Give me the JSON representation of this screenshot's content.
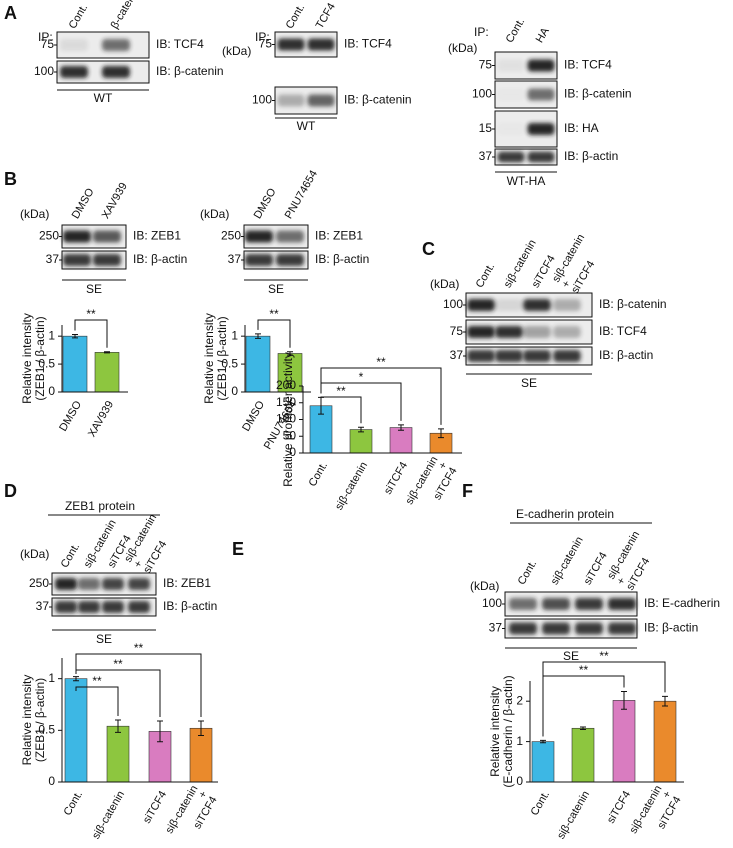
{
  "panel_labels": [
    "A",
    "B",
    "C",
    "D",
    "E",
    "F"
  ],
  "blots": [
    {
      "ip": "IP:",
      "lanes": [
        "Cont.",
        "β-catenin"
      ],
      "rows": [
        {
          "mw": "75",
          "ib": "IB: TCF4"
        },
        {
          "mw": "100",
          "ib": "IB: β-catenin"
        }
      ],
      "cell": "WT"
    },
    {
      "kda": "(kDa)",
      "ip": "IP:",
      "lanes": [
        "Cont.",
        "TCF4"
      ],
      "rows": [
        {
          "mw": "75",
          "ib": "IB: TCF4"
        },
        {
          "mw": "100",
          "ib": "IB: β-catenin"
        }
      ],
      "cell": "WT"
    },
    {
      "kda": "(kDa)",
      "ip": "IP:",
      "lanes": [
        "Cont.",
        "HA"
      ],
      "rows": [
        {
          "mw": "75",
          "ib": "IB: TCF4"
        },
        {
          "mw": "100",
          "ib": "IB: β-catenin"
        },
        {
          "mw": "15",
          "ib": "IB: HA"
        },
        {
          "mw": "37",
          "ib": "IB: β-actin"
        }
      ],
      "cell": "WT-HA"
    },
    {
      "kda": "(kDa)",
      "lanes": [
        "DMSO",
        "XAV939"
      ],
      "rows": [
        {
          "mw": "250",
          "ib": "IB: ZEB1"
        },
        {
          "mw": "37",
          "ib": "IB: β-actin"
        }
      ],
      "cell": "SE"
    },
    {
      "kda": "(kDa)",
      "lanes": [
        "DMSO",
        "PNU74654"
      ],
      "rows": [
        {
          "mw": "250",
          "ib": "IB: ZEB1"
        },
        {
          "mw": "37",
          "ib": "IB: β-actin"
        }
      ],
      "cell": "SE"
    },
    {
      "kda": "(kDa)",
      "lanes": [
        "Cont.",
        "siβ-catenin",
        "siTCF4",
        [
          "siβ-catenin",
          "+",
          "siTCF4"
        ]
      ],
      "rows": [
        {
          "mw": "100",
          "ib": "IB: β-catenin"
        },
        {
          "mw": "75",
          "ib": "IB: TCF4"
        },
        {
          "mw": "37",
          "ib": "IB: β-actin"
        }
      ],
      "cell": "SE"
    },
    {
      "header": "ZEB1 protein",
      "kda": "(kDa)",
      "lanes": [
        "Cont.",
        "siβ-catenin",
        "siTCF4",
        [
          "siβ-catenin",
          "+",
          "siTCF4"
        ]
      ],
      "rows": [
        {
          "mw": "250",
          "ib": "IB: ZEB1"
        },
        {
          "mw": "37",
          "ib": "IB: β-actin"
        }
      ],
      "cell": "SE"
    },
    {
      "header": "E-cadherin protein",
      "kda": "(kDa)",
      "lanes": [
        "Cont.",
        "siβ-catenin",
        "siTCF4",
        [
          "siβ-catenin",
          "+",
          "siTCF4"
        ]
      ],
      "rows": [
        {
          "mw": "100",
          "ib": "IB: E-cadherin"
        },
        {
          "mw": "37",
          "ib": "IB: β-actin"
        }
      ],
      "cell": "SE"
    }
  ],
  "chart_data": [
    {
      "type": "bar",
      "y_label": [
        "Relative intensity",
        "(ZEB1 / β-actin)"
      ],
      "categories": [
        "DMSO",
        "XAV939"
      ],
      "values": [
        1.0,
        0.71
      ],
      "errors": [
        0.03,
        0.01
      ],
      "colors": [
        "#3db7e4",
        "#8dc63f"
      ],
      "ylim": [
        0,
        1.2
      ],
      "yticks": [
        0,
        0.5,
        1
      ],
      "significance": [
        {
          "between": [
            0,
            1
          ],
          "label": "**"
        }
      ]
    },
    {
      "type": "bar",
      "y_label": [
        "Relative intensity",
        "(ZEB1 / β-actin)"
      ],
      "categories": [
        "DMSO",
        "PNU74654"
      ],
      "values": [
        1.0,
        0.69
      ],
      "errors": [
        0.04,
        0.03
      ],
      "colors": [
        "#3db7e4",
        "#8dc63f"
      ],
      "ylim": [
        0,
        1.2
      ],
      "yticks": [
        0,
        0.5,
        1
      ],
      "significance": [
        {
          "between": [
            0,
            1
          ],
          "label": "**"
        }
      ]
    },
    {
      "type": "bar",
      "y_label": [
        "Relative intensity",
        "(ZEB1 / β-actin)"
      ],
      "categories": [
        "Cont.",
        "siβ-catenin",
        "siTCF4",
        [
          "siβ-catenin",
          "+",
          "siTCF4"
        ]
      ],
      "values": [
        1.0,
        0.54,
        0.49,
        0.52
      ],
      "errors": [
        0.02,
        0.06,
        0.1,
        0.07
      ],
      "colors": [
        "#3db7e4",
        "#8dc63f",
        "#d97cc0",
        "#ea8a2c"
      ],
      "ylim": [
        0,
        1.2
      ],
      "yticks": [
        0,
        0.5,
        1
      ],
      "significance": [
        {
          "between": [
            0,
            1
          ],
          "label": "**"
        },
        {
          "between": [
            0,
            2
          ],
          "label": "**"
        },
        {
          "between": [
            0,
            3
          ],
          "label": "**"
        }
      ]
    },
    {
      "type": "bar",
      "y_label": [
        "Relative promoter activity"
      ],
      "categories": [
        "Cont.",
        "siβ-catenin",
        "siTCF4",
        [
          "siβ-catenin",
          "+",
          "siTCF4"
        ]
      ],
      "values": [
        141,
        70,
        76,
        59
      ],
      "errors": [
        25,
        7,
        8,
        13
      ],
      "colors": [
        "#3db7e4",
        "#8dc63f",
        "#d97cc0",
        "#ea8a2c"
      ],
      "ylim": [
        0,
        200
      ],
      "yticks": [
        0,
        50,
        100,
        150,
        200
      ],
      "significance": [
        {
          "between": [
            0,
            1
          ],
          "label": "**"
        },
        {
          "between": [
            0,
            2
          ],
          "label": "*"
        },
        {
          "between": [
            0,
            3
          ],
          "label": "**"
        }
      ]
    },
    {
      "type": "bar",
      "y_label": [
        "Relative intensity",
        "(E-cadherin / β-actin)"
      ],
      "categories": [
        "Cont.",
        "siβ-catenin",
        "siTCF4",
        [
          "siβ-catenin",
          "+",
          "siTCF4"
        ]
      ],
      "values": [
        1.0,
        1.33,
        2.02,
        2.0
      ],
      "errors": [
        0.03,
        0.03,
        0.22,
        0.12
      ],
      "colors": [
        "#3db7e4",
        "#8dc63f",
        "#d97cc0",
        "#ea8a2c"
      ],
      "ylim": [
        0,
        2.5
      ],
      "yticks": [
        0,
        1,
        2
      ],
      "significance": [
        {
          "between": [
            0,
            2
          ],
          "label": "**"
        },
        {
          "between": [
            0,
            3
          ],
          "label": "**"
        }
      ]
    }
  ]
}
